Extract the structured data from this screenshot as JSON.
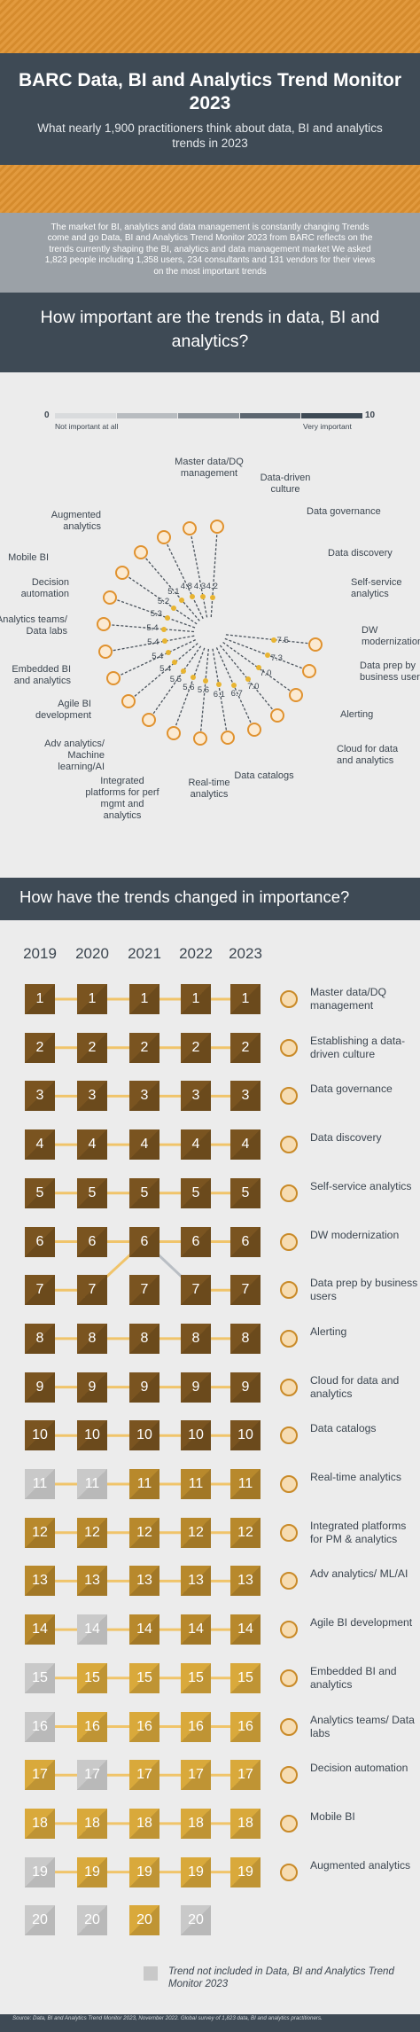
{
  "header": {
    "title": "BARC Data, BI and Analytics Trend Monitor 2023",
    "subtitle": "What nearly 1,900 practitioners think about data, BI and analytics trends in 2023"
  },
  "intro": "The market for BI, analytics and data management is constantly changing Trends come and go Data, BI and Analytics Trend Monitor 2023 from BARC reflects on the trends currently shaping the BI, analytics and data management market We asked 1,823 people including 1,358 users, 234 consultants and 131 vendors for their views on the most important trends",
  "section1": {
    "question": "How important are the trends in data, BI and analytics?",
    "scale": {
      "min": "0",
      "max": "10",
      "low_label": "Not important at all",
      "high_label": "Very important",
      "colors": [
        "#d9dbdd",
        "#b8bcc0",
        "#8d949b",
        "#5c6670",
        "#3e4a55"
      ]
    }
  },
  "chart_data": {
    "type": "radial",
    "categories": [
      "Master data/DQ management",
      "Data-driven culture",
      "Data governance",
      "Data discovery",
      "Self-service analytics",
      "DW modernization",
      "Data prep by business users",
      "Alerting",
      "Cloud for data and analytics",
      "Data catalogs",
      "Real-time analytics",
      "Integrated platforms for perf mgmt and analytics",
      "Adv analytics/ Machine learning/AI",
      "Agile BI development",
      "Embedded BI and analytics",
      "Analytics teams/ Data labs",
      "Decision automation",
      "Mobile BI",
      "Augmented analytics"
    ],
    "values": [
      7.5,
      7.3,
      7.0,
      7.0,
      6.7,
      6.1,
      5.6,
      5.6,
      5.5,
      5.4,
      5.4,
      5.4,
      5.4,
      5.3,
      5.2,
      5.1,
      4.8,
      4.3,
      4.2
    ],
    "range": [
      0,
      10
    ]
  },
  "section2": {
    "question": "How have the trends changed in importance?",
    "years": [
      "2019",
      "2020",
      "2021",
      "2022",
      "2023"
    ],
    "rankings": {
      "2019": [
        "1",
        "2",
        "3",
        "4",
        "5",
        "6",
        "7",
        "8",
        "9",
        "10",
        "11",
        "12",
        "13",
        "14",
        "15",
        "16",
        "17",
        "18",
        "19",
        "20"
      ],
      "2020": [
        "1",
        "2",
        "3",
        "4",
        "5",
        "6",
        "7",
        "8",
        "9",
        "10",
        "11",
        "12",
        "13",
        "14",
        "15",
        "16",
        "17",
        "18",
        "19",
        "20"
      ],
      "2021": [
        "1",
        "2",
        "3",
        "4",
        "5",
        "6",
        "7",
        "8",
        "9",
        "10",
        "11",
        "12",
        "13",
        "14",
        "15",
        "16",
        "17",
        "18",
        "19",
        "20"
      ],
      "2022": [
        "1",
        "2",
        "3",
        "4",
        "5",
        "6",
        "7",
        "8",
        "9",
        "10",
        "11",
        "12",
        "13",
        "14",
        "15",
        "16",
        "17",
        "18",
        "19",
        "20"
      ],
      "2023": [
        "1",
        "2",
        "3",
        "4",
        "5",
        "6",
        "7",
        "8",
        "9",
        "10",
        "11",
        "12",
        "13",
        "14",
        "15",
        "16",
        "17",
        "18",
        "19"
      ]
    },
    "excluded": {
      "2019": [
        "11",
        "15",
        "16",
        "19",
        "20"
      ],
      "2020": [
        "11",
        "14",
        "17",
        "20"
      ],
      "2021": [],
      "2022": [
        "20"
      ],
      "2023": []
    },
    "items": [
      "Master data/DQ management",
      "Establishing a data-driven culture",
      "Data governance",
      "Data discovery",
      "Self-service analytics",
      "DW modernization",
      "Data prep by business users",
      "Alerting",
      "Cloud for data and analytics",
      "Data catalogs",
      "Real-time analytics",
      "Integrated platforms for PM & analytics",
      "Adv analytics/ ML/AI",
      "Agile BI development",
      "Embedded BI and analytics",
      "Analytics teams/ Data labs",
      "Decision automation",
      "Mobile BI",
      "Augmented analytics"
    ],
    "legend": "Trend not included in Data, BI and Analytics Trend Monitor 2023",
    "colors": {
      "excluded": "#c9c9c9",
      "line_up": "#f0c46a",
      "line_down": "#b9bec4"
    }
  },
  "footer": "Source: Data, BI and Analytics Trend Monitor 2023, November 2022. Global survey of 1,823 data, BI and analytics practitioners."
}
